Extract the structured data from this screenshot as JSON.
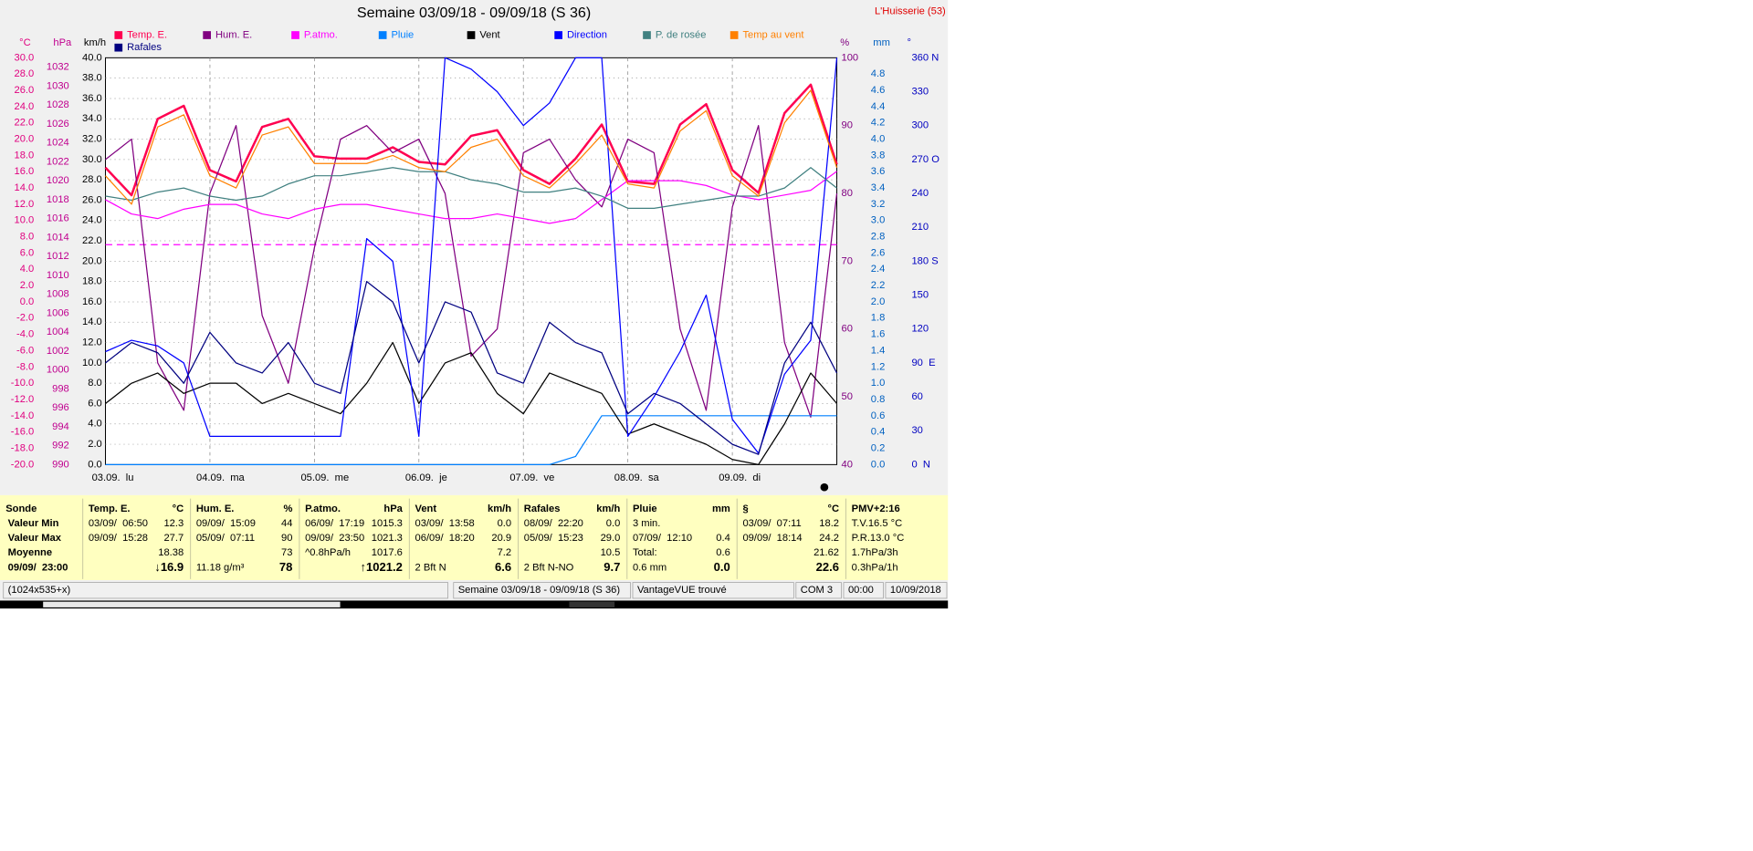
{
  "chart_data": {
    "type": "line",
    "title": "Semaine 03/09/18 - 09/09/18 (S 36)",
    "location": "L'Huisserie (53)",
    "x": [
      0,
      6,
      12,
      18,
      24,
      30,
      36,
      42,
      48,
      54,
      60,
      66,
      72,
      78,
      84,
      90,
      96,
      102,
      108,
      114,
      120,
      126,
      132,
      138,
      144,
      150,
      156,
      162,
      168
    ],
    "xlim": [
      0,
      168
    ],
    "xticks": [
      {
        "value": 0,
        "label": "03.09.  lu"
      },
      {
        "value": 24,
        "label": "04.09.  ma"
      },
      {
        "value": 48,
        "label": "05.09.  me"
      },
      {
        "value": 72,
        "label": "06.09.  je"
      },
      {
        "value": 96,
        "label": "07.09.  ve"
      },
      {
        "value": 120,
        "label": "08.09.  sa"
      },
      {
        "value": 144,
        "label": "09.09.  di"
      }
    ],
    "grid": true,
    "reference_line": 1013.25,
    "axes": {
      "temp": {
        "label": "°C",
        "color": "#e0007f",
        "lim": [
          -20,
          30
        ],
        "ticks": [
          {
            "value": 30,
            "label": "30.0"
          },
          {
            "value": 28,
            "label": "28.0"
          },
          {
            "value": 26,
            "label": "26.0"
          },
          {
            "value": 24,
            "label": "24.0"
          },
          {
            "value": 22,
            "label": "22.0"
          },
          {
            "value": 20,
            "label": "20.0"
          },
          {
            "value": 18,
            "label": "18.0"
          },
          {
            "value": 16,
            "label": "16.0"
          },
          {
            "value": 14,
            "label": "14.0"
          },
          {
            "value": 12,
            "label": "12.0"
          },
          {
            "value": 10,
            "label": "10.0"
          },
          {
            "value": 8,
            "label": "8.0"
          },
          {
            "value": 6,
            "label": "6.0"
          },
          {
            "value": 4,
            "label": "4.0"
          },
          {
            "value": 2,
            "label": "2.0"
          },
          {
            "value": 0,
            "label": "0.0"
          },
          {
            "value": -2,
            "label": "-2.0"
          },
          {
            "value": -4,
            "label": "-4.0"
          },
          {
            "value": -6,
            "label": "-6.0"
          },
          {
            "value": -8,
            "label": "-8.0"
          },
          {
            "value": -10,
            "label": "-10.0"
          },
          {
            "value": -12,
            "label": "-12.0"
          },
          {
            "value": -14,
            "label": "-14.0"
          },
          {
            "value": -16,
            "label": "-16.0"
          },
          {
            "value": -18,
            "label": "-18.0"
          },
          {
            "value": -20,
            "label": "-20.0"
          }
        ]
      },
      "hpa": {
        "label": "hPa",
        "color": "#c0008f",
        "lim": [
          990,
          1033
        ],
        "ticks": [
          990,
          992,
          994,
          996,
          998,
          1000,
          1002,
          1004,
          1006,
          1008,
          1010,
          1012,
          1014,
          1016,
          1018,
          1020,
          1022,
          1024,
          1026,
          1028,
          1030,
          1032
        ]
      },
      "kmh": {
        "label": "km/h",
        "color": "#000000",
        "lim": [
          0,
          40
        ],
        "ticks": [
          {
            "value": 0,
            "label": "0.0"
          },
          {
            "value": 2,
            "label": "2.0"
          },
          {
            "value": 4,
            "label": "4.0"
          },
          {
            "value": 6,
            "label": "6.0"
          },
          {
            "value": 8,
            "label": "8.0"
          },
          {
            "value": 10,
            "label": "10.0"
          },
          {
            "value": 12,
            "label": "12.0"
          },
          {
            "value": 14,
            "label": "14.0"
          },
          {
            "value": 16,
            "label": "16.0"
          },
          {
            "value": 18,
            "label": "18.0"
          },
          {
            "value": 20,
            "label": "20.0"
          },
          {
            "value": 22,
            "label": "22.0"
          },
          {
            "value": 24,
            "label": "24.0"
          },
          {
            "value": 26,
            "label": "26.0"
          },
          {
            "value": 28,
            "label": "28.0"
          },
          {
            "value": 30,
            "label": "30.0"
          },
          {
            "value": 32,
            "label": "32.0"
          },
          {
            "value": 34,
            "label": "34.0"
          },
          {
            "value": 36,
            "label": "36.0"
          },
          {
            "value": 38,
            "label": "38.0"
          },
          {
            "value": 40,
            "label": "40.0"
          }
        ]
      },
      "pct": {
        "label": "%",
        "color": "#800080",
        "lim": [
          40,
          100
        ],
        "ticks": [
          40,
          50,
          60,
          70,
          80,
          90,
          100
        ]
      },
      "mm": {
        "label": "mm",
        "color": "#0060c0",
        "lim": [
          0,
          5
        ],
        "ticks": [
          {
            "value": 0,
            "label": "0.0"
          },
          {
            "value": 0.2,
            "label": "0.2"
          },
          {
            "value": 0.4,
            "label": "0.4"
          },
          {
            "value": 0.6,
            "label": "0.6"
          },
          {
            "value": 0.8,
            "label": "0.8"
          },
          {
            "value": 1,
            "label": "1.0"
          },
          {
            "value": 1.2,
            "label": "1.2"
          },
          {
            "value": 1.4,
            "label": "1.4"
          },
          {
            "value": 1.6,
            "label": "1.6"
          },
          {
            "value": 1.8,
            "label": "1.8"
          },
          {
            "value": 2,
            "label": "2.0"
          },
          {
            "value": 2.2,
            "label": "2.2"
          },
          {
            "value": 2.4,
            "label": "2.4"
          },
          {
            "value": 2.6,
            "label": "2.6"
          },
          {
            "value": 2.8,
            "label": "2.8"
          },
          {
            "value": 3,
            "label": "3.0"
          },
          {
            "value": 3.2,
            "label": "3.2"
          },
          {
            "value": 3.4,
            "label": "3.4"
          },
          {
            "value": 3.6,
            "label": "3.6"
          },
          {
            "value": 3.8,
            "label": "3.8"
          },
          {
            "value": 4,
            "label": "4.0"
          },
          {
            "value": 4.2,
            "label": "4.2"
          },
          {
            "value": 4.4,
            "label": "4.4"
          },
          {
            "value": 4.6,
            "label": "4.6"
          },
          {
            "value": 4.8,
            "label": "4.8"
          }
        ]
      },
      "dir": {
        "label": "°",
        "color": "#0000c0",
        "lim": [
          0,
          360
        ],
        "ticks": [
          {
            "value": 0,
            "label": "0  N"
          },
          30,
          60,
          {
            "value": 90,
            "label": "90  E"
          },
          120,
          150,
          {
            "value": 180,
            "label": "180 S"
          },
          210,
          240,
          {
            "value": 270,
            "label": "270 O"
          },
          300,
          330,
          {
            "value": 360,
            "label": "360 N"
          }
        ]
      }
    },
    "series": [
      {
        "name": "Temp. E.",
        "color": "#ff0050",
        "axis": "temp",
        "width": 2,
        "values": [
          16.5,
          13.1,
          22.5,
          24.1,
          16.2,
          14.8,
          21.5,
          22.5,
          17.9,
          17.6,
          17.6,
          19.0,
          17.2,
          16.9,
          20.4,
          21.1,
          16.2,
          14.5,
          17.6,
          21.8,
          14.8,
          14.5,
          21.8,
          24.3,
          16.2,
          13.4,
          23.2,
          26.7,
          16.9
        ]
      },
      {
        "name": "Hum. E.",
        "color": "#800080",
        "axis": "pct",
        "width": 1,
        "values": [
          85,
          88,
          55,
          48,
          80,
          90,
          62,
          52,
          72,
          88,
          90,
          86,
          88,
          80,
          56,
          60,
          86,
          88,
          82,
          78,
          88,
          86,
          60,
          48,
          78,
          90,
          58,
          47,
          80
        ]
      },
      {
        "name": "P.atmo.",
        "color": "#ff00ff",
        "axis": "hpa",
        "width": 1,
        "values": [
          1018,
          1016.5,
          1016,
          1017,
          1017.5,
          1017.5,
          1016.5,
          1016,
          1017,
          1017.5,
          1017.5,
          1017,
          1016.5,
          1016,
          1016,
          1016.5,
          1016,
          1015.5,
          1016,
          1018,
          1020,
          1020,
          1020,
          1019.5,
          1018.5,
          1018,
          1018.5,
          1019,
          1021
        ]
      },
      {
        "name": "Pluie",
        "color": "#0080ff",
        "axis": "mm",
        "width": 1,
        "values": [
          0,
          0,
          0,
          0,
          0,
          0,
          0,
          0,
          0,
          0,
          0,
          0,
          0,
          0,
          0,
          0,
          0,
          0,
          0.1,
          0.6,
          0.6,
          0.6,
          0.6,
          0.6,
          0.6,
          0.6,
          0.6,
          0.6,
          0.6
        ]
      },
      {
        "name": "Vent",
        "color": "#000000",
        "axis": "kmh",
        "width": 1,
        "values": [
          6,
          8,
          9,
          7,
          8,
          8,
          6,
          7,
          6,
          5,
          8,
          12,
          6,
          10,
          11,
          7,
          5,
          9,
          8,
          7,
          3,
          4,
          3,
          2,
          0.5,
          0,
          4,
          9,
          6
        ]
      },
      {
        "name": "Direction",
        "color": "#0000ff",
        "axis": "dir",
        "width": 1,
        "values": [
          100,
          110,
          105,
          90,
          25,
          25,
          25,
          25,
          25,
          25,
          200,
          180,
          25,
          360,
          350,
          330,
          300,
          320,
          360,
          360,
          25,
          60,
          100,
          150,
          40,
          10,
          80,
          110,
          360
        ]
      },
      {
        "name": "P. de rosée",
        "color": "#408080",
        "axis": "temp",
        "width": 1,
        "values": [
          13.0,
          12.5,
          13.5,
          14.0,
          13.0,
          12.5,
          13.0,
          14.5,
          15.5,
          15.5,
          16.0,
          16.5,
          16.0,
          16.0,
          15.0,
          14.5,
          13.5,
          13.5,
          14.0,
          13.0,
          11.5,
          11.5,
          12.0,
          12.5,
          13.0,
          13.0,
          14.0,
          16.5,
          14.0
        ]
      },
      {
        "name": "Temp au vent",
        "color": "#ff8000",
        "axis": "temp",
        "width": 1,
        "values": [
          15.5,
          12.0,
          21.5,
          23.0,
          15.5,
          14.0,
          20.5,
          21.5,
          17.0,
          17.0,
          17.0,
          18.0,
          16.5,
          16.0,
          19.0,
          20.0,
          15.5,
          14.0,
          17.0,
          20.5,
          14.5,
          14.0,
          21.0,
          23.5,
          15.5,
          13.0,
          22.0,
          26.0,
          16.5
        ]
      },
      {
        "name": "Rafales",
        "color": "#000080",
        "axis": "kmh",
        "width": 1,
        "values": [
          10,
          12,
          11,
          8,
          13,
          10,
          9,
          12,
          8,
          7,
          18,
          16,
          10,
          16,
          15,
          9,
          8,
          14,
          12,
          11,
          5,
          7,
          6,
          4,
          2,
          1,
          10,
          14,
          9
        ]
      }
    ]
  },
  "table": {
    "header": [
      {
        "name": "Sonde"
      },
      {
        "name": "Temp. E.",
        "unit": "°C"
      },
      {
        "name": "Hum. E.",
        "unit": "%"
      },
      {
        "name": "P.atmo.",
        "unit": "hPa"
      },
      {
        "name": "Vent",
        "unit": "km/h"
      },
      {
        "name": "Rafales",
        "unit": "km/h"
      },
      {
        "name": "Pluie",
        "unit": "mm"
      },
      {
        "name": "§",
        "unit": "°C"
      },
      {
        "name": "PMV+2:16"
      }
    ],
    "rows": [
      [
        {
          "l": "Valeur Min"
        },
        {
          "l": "03/09/  06:50",
          "r": "12.3"
        },
        {
          "l": "09/09/  15:09",
          "r": "44"
        },
        {
          "l": "06/09/  17:19",
          "r": "1015.3"
        },
        {
          "l": "03/09/  13:58",
          "r": "0.0"
        },
        {
          "l": "08/09/  22:20",
          "r": "0.0"
        },
        {
          "l": "3 min."
        },
        {
          "l": "03/09/  07:11",
          "r": "18.2"
        },
        {
          "l": "T.V.16.5 °C"
        }
      ],
      [
        {
          "l": "Valeur Max"
        },
        {
          "l": "09/09/  15:28",
          "r": "27.7"
        },
        {
          "l": "05/09/  07:11",
          "r": "90"
        },
        {
          "l": "09/09/  23:50",
          "r": "1021.3"
        },
        {
          "l": "06/09/  18:20",
          "r": "20.9"
        },
        {
          "l": "05/09/  15:23",
          "r": "29.0"
        },
        {
          "l": "07/09/  12:10",
          "r": "0.4"
        },
        {
          "l": "09/09/  18:14",
          "r": "24.2"
        },
        {
          "l": "P.R.13.0 °C"
        }
      ],
      [
        {
          "l": "Moyenne"
        },
        {
          "r": "18.38"
        },
        {
          "r": "73"
        },
        {
          "l": "^0.8hPa/h",
          "r": "1017.6"
        },
        {
          "r": "7.2"
        },
        {
          "r": "10.5"
        },
        {
          "l": "Total:",
          "r": "0.6"
        },
        {
          "r": "21.62"
        },
        {
          "l": "1.7hPa/3h"
        }
      ],
      [
        {
          "l": "09/09/  23:00"
        },
        {
          "r": "↓16.9"
        },
        {
          "l": "11.18 g/m³",
          "r": "78"
        },
        {
          "r": "↑1021.2"
        },
        {
          "l": "2 Bft N",
          "r": "6.6"
        },
        {
          "l": "2 Bft N-NO",
          "r": "9.7"
        },
        {
          "l": "0.6 mm",
          "r": "0.0"
        },
        {
          "r": "22.6"
        },
        {
          "l": "0.3hPa/1h"
        }
      ]
    ]
  },
  "status_bar": [
    "(1024x535+x)",
    "Semaine 03/09/18 - 09/09/18 (S 36)",
    "VantageVUE trouvé",
    "COM 3",
    "00:00",
    "10/09/2018"
  ]
}
